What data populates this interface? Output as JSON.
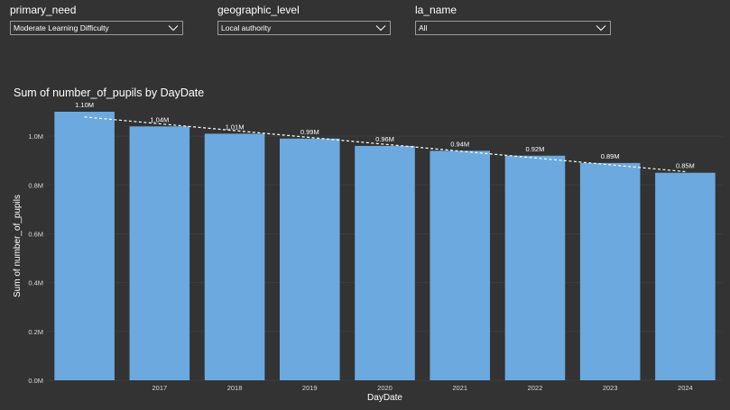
{
  "slicers": [
    {
      "label": "primary_need",
      "value": "Moderate Learning Difficulty"
    },
    {
      "label": "geographic_level",
      "value": "Local authority"
    },
    {
      "label": "la_name",
      "value": "All"
    }
  ],
  "colors": {
    "background": "#333333",
    "bar": "#6CA9DE",
    "trend": "#ffffff",
    "text": "#ffffff",
    "axis_text": "#d9d9d9"
  },
  "chart_data": {
    "type": "bar",
    "title": "Sum of number_of_pupils by DayDate",
    "xlabel": "DayDate",
    "ylabel": "Sum of number_of_pupils",
    "categories": [
      "",
      "2017",
      "2018",
      "2019",
      "2020",
      "2021",
      "2022",
      "2023",
      "2024"
    ],
    "values": [
      1.1,
      1.04,
      1.01,
      0.99,
      0.96,
      0.94,
      0.92,
      0.89,
      0.85
    ],
    "data_labels": [
      "1.10M",
      "1.04M",
      "1.01M",
      "0.99M",
      "0.96M",
      "0.94M",
      "0.92M",
      "0.89M",
      "0.85M"
    ],
    "y_ticks": [
      0,
      0.2,
      0.4,
      0.6,
      0.8,
      1.0
    ],
    "y_tick_labels": [
      "0.0M",
      "0.2M",
      "0.4M",
      "0.6M",
      "0.8M",
      "1.0M"
    ],
    "ylim": [
      0,
      1.1
    ],
    "value_unit": "millions",
    "trend_line": true,
    "trend_style": "dashed",
    "grid": true
  }
}
